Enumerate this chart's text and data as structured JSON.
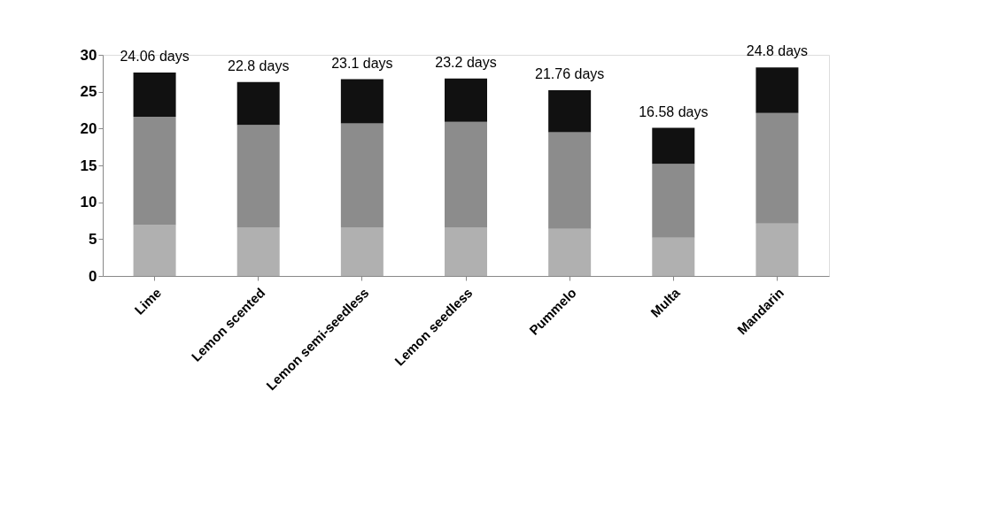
{
  "chart_data": {
    "type": "bar",
    "stacked": true,
    "categories": [
      "Lime",
      "Lemon scented",
      "Lemon semi-seedless",
      "Lemon seedless",
      "Pummelo",
      "Multa",
      "Mandarin"
    ],
    "series": [
      {
        "color": "#b0b0b0",
        "values": [
          6.9,
          6.6,
          6.6,
          6.6,
          6.4,
          5.2,
          7.1
        ]
      },
      {
        "color": "#8c8c8c",
        "values": [
          14.7,
          13.9,
          14.1,
          14.3,
          13.1,
          10.0,
          15.0
        ]
      },
      {
        "color": "#111111",
        "values": [
          6.0,
          5.8,
          6.0,
          5.9,
          5.7,
          4.9,
          6.2
        ]
      }
    ],
    "annotations": [
      {
        "text": "24.06 days",
        "x": "Lime",
        "y": 27.6
      },
      {
        "text": "22.8 days",
        "x": "Lemon scented",
        "y": 26.3
      },
      {
        "text": "23.1 days",
        "x": "Lemon semi-seedless",
        "y": 26.7
      },
      {
        "text": "23.2 days",
        "x": "Lemon seedless",
        "y": 26.8
      },
      {
        "text": "21.76 days",
        "x": "Pummelo",
        "y": 25.2
      },
      {
        "text": "16.58 days",
        "x": "Multa",
        "y": 20.1
      },
      {
        "text": "24.8 days",
        "x": "Mandarin",
        "y": 28.3
      }
    ],
    "ylim": [
      0,
      30
    ],
    "yticks": [
      0,
      5,
      10,
      15,
      20,
      25,
      30
    ],
    "grid": false,
    "legend": false
  }
}
